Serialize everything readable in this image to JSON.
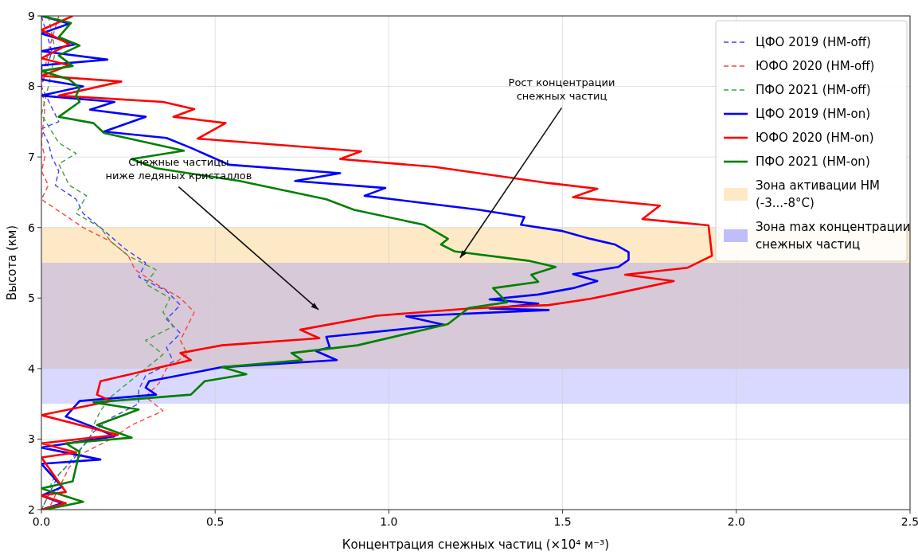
{
  "chart_data": {
    "type": "line",
    "xlabel": "Концентрация снежных частиц (×10⁴ м⁻³)",
    "ylabel": "Высота (км)",
    "xlim": [
      0,
      2.5
    ],
    "ylim": [
      2,
      9
    ],
    "xticks": [
      {
        "value": 0,
        "label": "0.0"
      },
      {
        "value": 0.5,
        "label": "0.5"
      },
      {
        "value": 1,
        "label": "1.0"
      },
      {
        "value": 1.5,
        "label": "1.5"
      },
      {
        "value": 2,
        "label": "2.0"
      },
      {
        "value": 2.5,
        "label": "2.5"
      }
    ],
    "yticks": [
      2,
      3,
      4,
      5,
      6,
      7,
      8,
      9
    ],
    "grid": true,
    "legend": "top right",
    "marker": "none",
    "bands": [
      {
        "axis": "y",
        "from": 4,
        "to": 6,
        "label": "Зона активации НМ (-3...-8°C)",
        "color": "#fbd38d"
      },
      {
        "axis": "y",
        "from": 3.5,
        "to": 5.5,
        "label": "Зона max концентрации снежных частиц",
        "color": "#8080ff"
      }
    ],
    "annotations": [
      "Снежные частицы ниже ледяных кристаллов",
      "Рост концентрации снежных частиц"
    ],
    "series": [
      {
        "name": "ЦФО 2019 (НМ-off)",
        "color": "#4040ff",
        "line_style": "dashed",
        "x": [
          0,
          0.03,
          0,
          0.05,
          0,
          0.02,
          0.03,
          0.05,
          0.04,
          0.1,
          0.12,
          0.17,
          0.24,
          0.3,
          0.28,
          0.36,
          0.4,
          0.36,
          0.4,
          0.36,
          0.38,
          0.3,
          0.28,
          0.28,
          0.2,
          0.15,
          0.12,
          0.09,
          0.05,
          0.03,
          0
        ],
        "values": [
          9,
          8.5,
          8,
          7.5,
          7.4,
          7.2,
          7,
          6.8,
          6.6,
          6.4,
          6.2,
          6,
          5.7,
          5.5,
          5.3,
          5.1,
          4.9,
          4.7,
          4.5,
          4.3,
          4.1,
          3.9,
          3.7,
          3.5,
          3.3,
          3.1,
          2.9,
          2.7,
          2.5,
          2.3,
          2
        ]
      },
      {
        "name": "ЮФО 2020 (НМ-off)",
        "color": "#ff4040",
        "line_style": "dashed",
        "x": [
          0.05,
          0.02,
          0,
          0.01,
          0,
          0.01,
          0,
          0.02,
          0,
          0.06,
          0.12,
          0.2,
          0.25,
          0.27,
          0.33,
          0.4,
          0.44,
          0.42,
          0.4,
          0.42,
          0.36,
          0.34,
          0.3,
          0.35,
          0.26,
          0.2,
          0.12,
          0.08,
          0.06,
          0.04,
          0.02
        ],
        "values": [
          9,
          8.5,
          8,
          7.7,
          7.2,
          7,
          6.8,
          6.6,
          6.4,
          6.2,
          6,
          5.8,
          5.6,
          5.4,
          5.2,
          5,
          4.8,
          4.6,
          4.4,
          4.2,
          4,
          3.8,
          3.6,
          3.4,
          3.2,
          3,
          2.8,
          2.6,
          2.4,
          2.2,
          2
        ]
      },
      {
        "name": "ПФО 2021 (НМ-off)",
        "color": "#40a040",
        "line_style": "dashed",
        "x": [
          0.02,
          0.04,
          0.02,
          0,
          0.05,
          0.1,
          0.05,
          0.08,
          0.13,
          0.1,
          0.17,
          0.2,
          0.25,
          0.33,
          0.3,
          0.37,
          0.35,
          0.38,
          0.3,
          0.35,
          0.3,
          0.25,
          0.2,
          0.17,
          0.15,
          0.14,
          0.1,
          0.07,
          0.03,
          0.02,
          0
        ],
        "values": [
          9,
          8.5,
          8,
          7.6,
          7.2,
          7.05,
          6.9,
          6.6,
          6.45,
          6.2,
          6,
          5.8,
          5.6,
          5.4,
          5.2,
          5,
          4.8,
          4.6,
          4.4,
          4.2,
          4,
          3.8,
          3.6,
          3.4,
          3.2,
          3,
          2.8,
          2.6,
          2.4,
          2.2,
          2
        ]
      },
      {
        "name": "ЦФО 2019 (НМ-on)",
        "color": "#0000ff",
        "line_style": "solid",
        "x": [
          0,
          0.08,
          0,
          0.1,
          0,
          0.19,
          0,
          0,
          0.12,
          0,
          0.21,
          0.14,
          0.3,
          0.18,
          0.36,
          0.43,
          0.54,
          0.86,
          0.73,
          0.99,
          0.93,
          1.26,
          1.39,
          1.38,
          1.5,
          1.58,
          1.65,
          1.69,
          1.69,
          1.66,
          1.53,
          1.6,
          1.53,
          1.43,
          1.29,
          1.43,
          1.29,
          1.46,
          1.05,
          1.16,
          0.82,
          0.83,
          0.79,
          0.85,
          0.52,
          0.31,
          0.3,
          0.33,
          0.11,
          0.07,
          0.15,
          0.21,
          0,
          0.17,
          0,
          0.06,
          0,
          0.06,
          0
        ],
        "values": [
          9,
          8.89,
          8.75,
          8.6,
          8.5,
          8.38,
          8.3,
          8.1,
          8,
          7.87,
          7.78,
          7.67,
          7.57,
          7.36,
          7.27,
          7.13,
          6.89,
          6.77,
          6.66,
          6.56,
          6.45,
          6.25,
          6.15,
          6.04,
          5.95,
          5.84,
          5.76,
          5.65,
          5.54,
          5.44,
          5.34,
          5.24,
          5.14,
          5.05,
          4.98,
          4.92,
          4.85,
          4.83,
          4.74,
          4.62,
          4.45,
          4.3,
          4.25,
          4.12,
          4.02,
          3.82,
          3.73,
          3.63,
          3.54,
          3.32,
          3.17,
          3.04,
          2.88,
          2.71,
          2.65,
          2.32,
          2.2,
          2.09,
          2
        ]
      },
      {
        "name": "ЮФО 2020 (НМ-on)",
        "color": "#ff0000",
        "line_style": "solid",
        "x": [
          0.09,
          0,
          0.08,
          0,
          0.08,
          0,
          0.23,
          0.05,
          0.35,
          0.44,
          0.38,
          0.53,
          0.45,
          0.92,
          0.86,
          1.13,
          1.46,
          1.6,
          1.53,
          1.78,
          1.73,
          1.92,
          1.93,
          1.86,
          1.68,
          1.82,
          1.64,
          1.58,
          1.46,
          1.23,
          0.965,
          0.745,
          0.8,
          0.52,
          0.4,
          0.43,
          0.17,
          0.16,
          0.2,
          0,
          0.22,
          0,
          0.1,
          0,
          0.07,
          0,
          0.07,
          0
        ],
        "values": [
          9,
          8.8,
          8.6,
          8.4,
          8.3,
          8.15,
          8.07,
          7.87,
          7.78,
          7.68,
          7.57,
          7.48,
          7.26,
          7.08,
          6.97,
          6.86,
          6.63,
          6.55,
          6.43,
          6.31,
          6.12,
          6.03,
          5.6,
          5.43,
          5.33,
          5.24,
          5.05,
          4.99,
          4.9,
          4.85,
          4.75,
          4.55,
          4.43,
          4.33,
          4.22,
          4.12,
          3.82,
          3.63,
          3.54,
          3.34,
          3.06,
          2.94,
          2.81,
          2.74,
          2.25,
          2.2,
          2.09,
          2
        ]
      },
      {
        "name": "ПФО 2021 (НМ-on)",
        "color": "#008000",
        "line_style": "solid",
        "x": [
          0,
          0.085,
          0.05,
          0.11,
          0.05,
          0.09,
          0,
          0.08,
          0.11,
          0.1,
          0.11,
          0.05,
          0.15,
          0.18,
          0.41,
          0.26,
          0.33,
          0.57,
          0.82,
          0.9,
          1.1,
          1.17,
          1.15,
          1.19,
          1.4,
          1.48,
          1.41,
          1.43,
          1.3,
          1.34,
          1.23,
          1.17,
          0.91,
          0.72,
          0.75,
          0.52,
          0.59,
          0.47,
          0.43,
          0.15,
          0.28,
          0.16,
          0.26,
          0.07,
          0.11,
          0.09,
          0,
          0.12,
          0.01
        ],
        "values": [
          9,
          8.9,
          8.7,
          8.58,
          8.44,
          8.29,
          8.22,
          8.1,
          7.98,
          7.87,
          7.78,
          7.57,
          7.48,
          7.34,
          7.09,
          6.97,
          6.84,
          6.66,
          6.4,
          6.25,
          6.04,
          5.84,
          5.76,
          5.66,
          5.53,
          5.44,
          5.33,
          5.23,
          5.14,
          4.94,
          4.86,
          4.63,
          4.33,
          4.22,
          4.12,
          4.02,
          3.92,
          3.82,
          3.63,
          3.52,
          3.42,
          3.2,
          3.02,
          2.94,
          2.82,
          2.4,
          2.3,
          2.11,
          2
        ]
      }
    ]
  }
}
